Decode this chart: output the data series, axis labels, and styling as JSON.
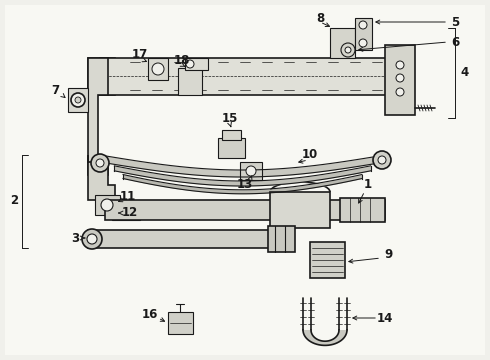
{
  "bg_color": "#f0f0eb",
  "line_color": "#1a1a1a",
  "figsize": [
    4.9,
    3.6
  ],
  "dpi": 100,
  "label_fs": 8.5,
  "lw_main": 1.2,
  "lw_med": 0.8,
  "lw_thin": 0.5
}
